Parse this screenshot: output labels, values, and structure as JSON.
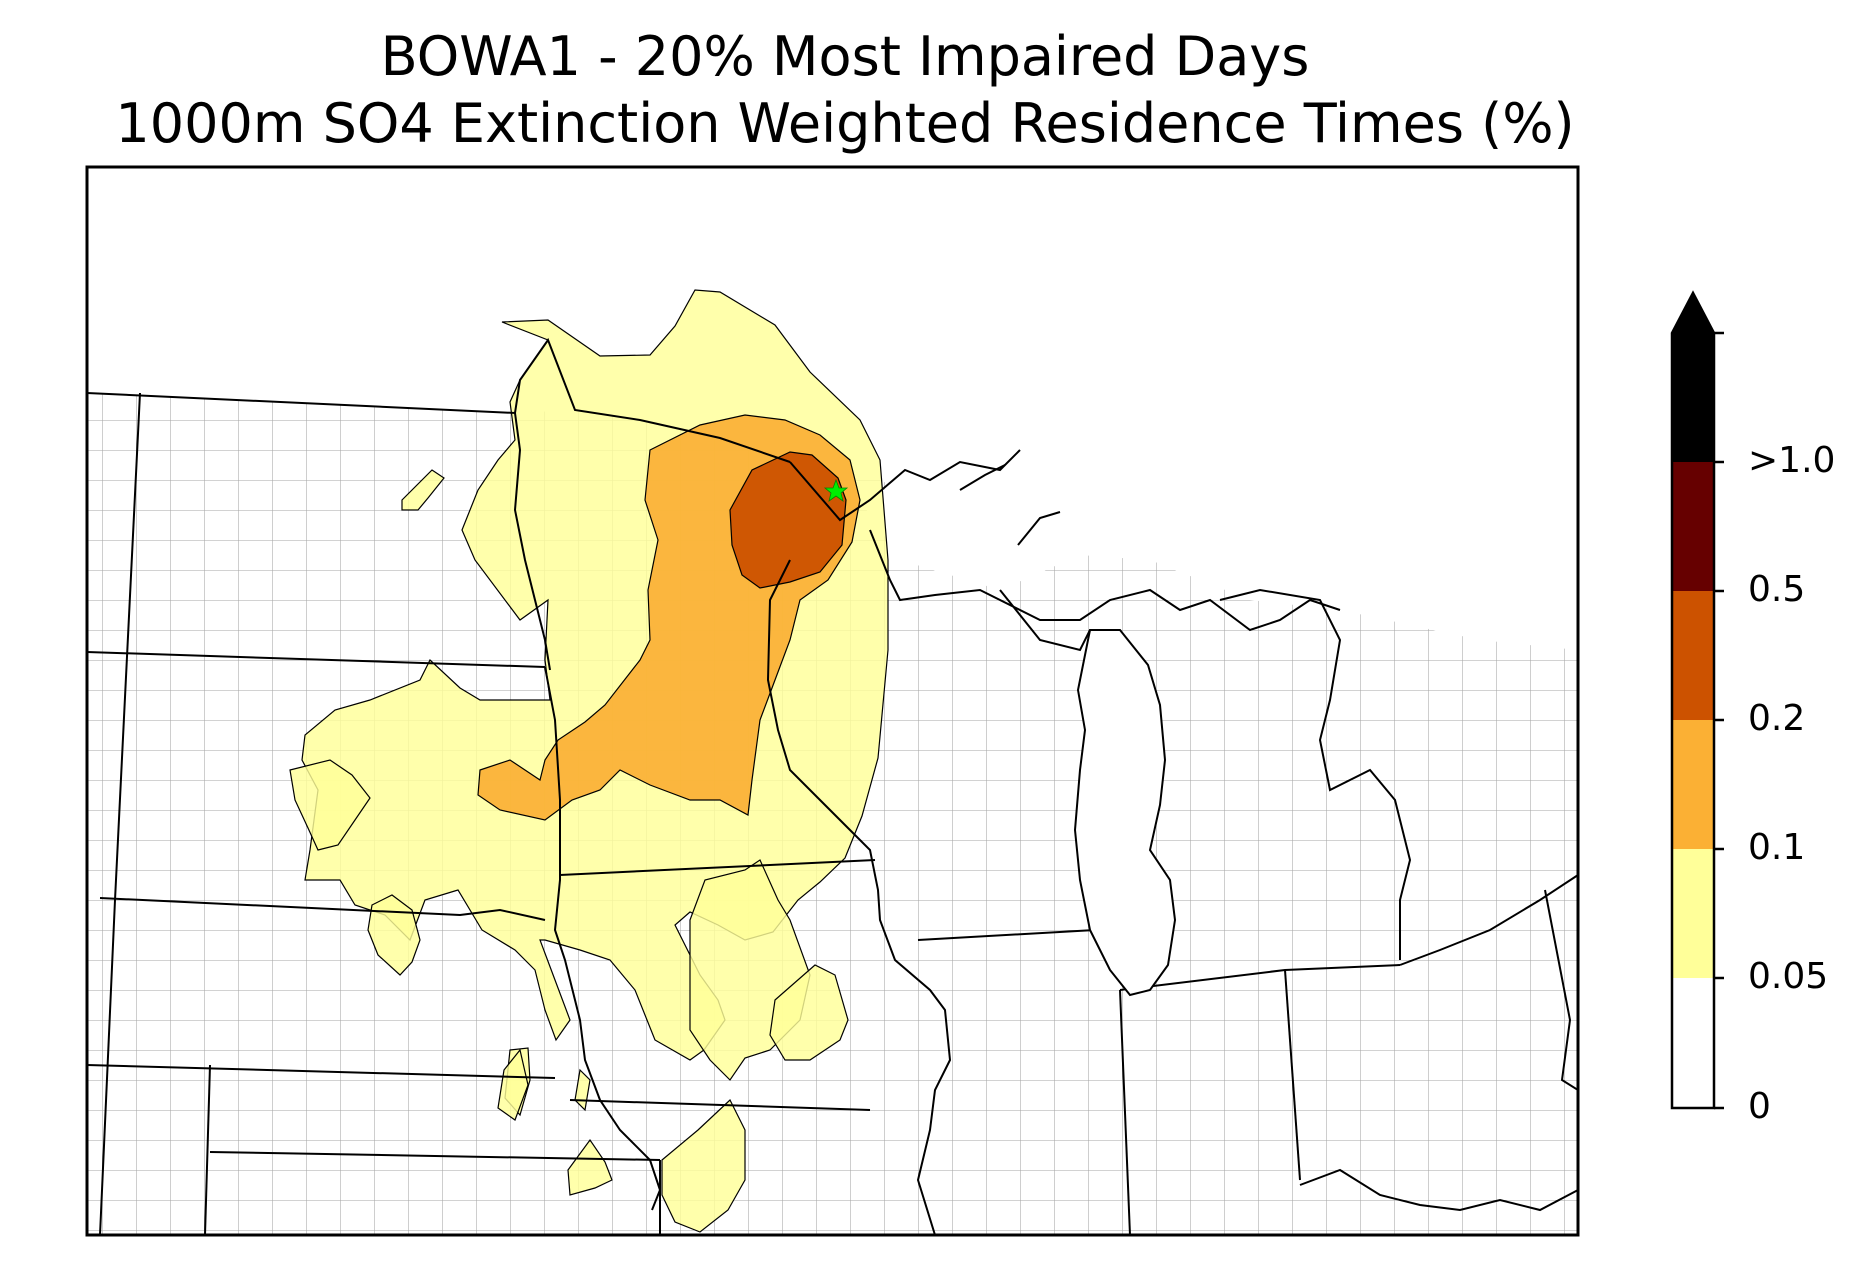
{
  "title_line1": "BOWA1 - 20% Most Impaired Days",
  "title_line2": "1000m SO4 Extinction Weighted Residence Times (%)",
  "site_marker": {
    "name": "BOWA1",
    "symbol": "star",
    "color": "#00ee00"
  },
  "colorbar": {
    "extend": "max",
    "extend_color": "#000000",
    "levels": [
      {
        "label": "0",
        "color": "#ffffff"
      },
      {
        "label": "0.05",
        "color": "#ffff99"
      },
      {
        "label": "0.1",
        "color": "#fbb034"
      },
      {
        "label": "0.2",
        "color": "#cc5200"
      },
      {
        "label": "0.5",
        "color": "#660000"
      },
      {
        "label": ">1.0",
        "color": "#000000"
      }
    ]
  },
  "map": {
    "state_border_color": "#000000",
    "county_border_color": "#999999",
    "contour_fill": {
      "0.05": "#ffff99",
      "0.1": "#fbb034",
      "0.2": "#cc5200"
    }
  }
}
